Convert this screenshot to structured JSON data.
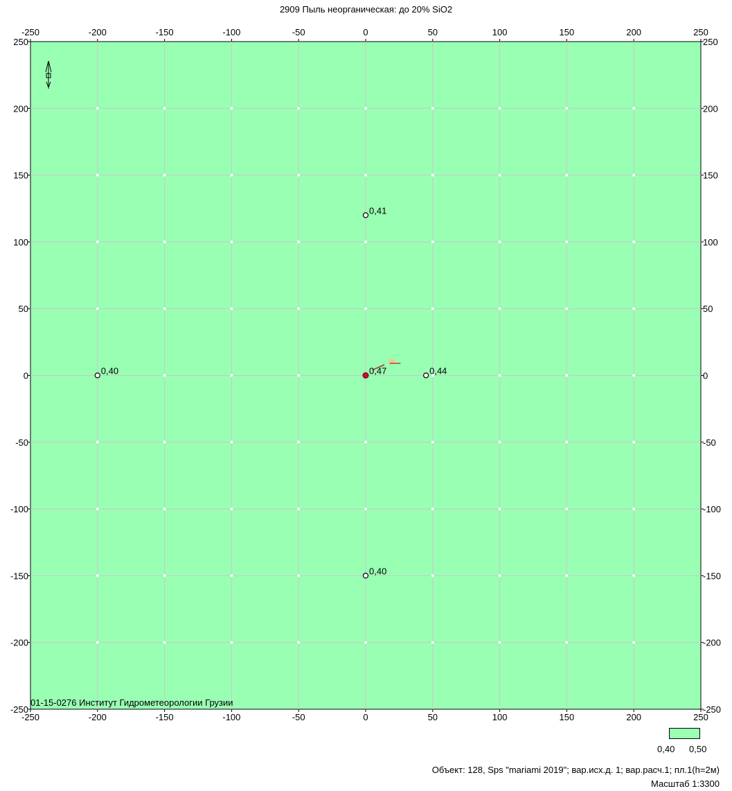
{
  "chart_data": {
    "type": "scatter",
    "title": "2909 Пыль неорганическая: до 20% SiO2",
    "xlim": [
      -250,
      250
    ],
    "ylim": [
      -250,
      250
    ],
    "x_ticks": [
      -250,
      -200,
      -150,
      -100,
      -50,
      0,
      50,
      100,
      150,
      200,
      250
    ],
    "y_ticks": [
      -250,
      -200,
      -150,
      -100,
      -50,
      0,
      50,
      100,
      150,
      200,
      250
    ],
    "grid": true,
    "background_color": "#99ffb3",
    "points": [
      {
        "x": 0,
        "y": 120,
        "label": "0,41",
        "marker": "open-circle"
      },
      {
        "x": -200,
        "y": 0,
        "label": "0,40",
        "marker": "open-circle"
      },
      {
        "x": 0,
        "y": 0,
        "label": "0,47",
        "marker": "filled-red"
      },
      {
        "x": 45,
        "y": 0,
        "label": "0,44",
        "marker": "open-circle"
      },
      {
        "x": 0,
        "y": -150,
        "label": "0,40",
        "marker": "open-circle"
      }
    ],
    "legend": {
      "color": "#99ffb3",
      "min": "0,40",
      "max": "0,50",
      "placement": "bottom-right"
    }
  },
  "corner_label": "01-15-0276 Институт Гидрометеорологии Грузии",
  "info_line": "Объект: 128, Sps \"mariami 2019\"; вар.исх.д. 1; вар.расч.1; пл.1(h=2м)",
  "scale_line": "Масштаб 1:3300",
  "icons": [
    "north-arrow-icon"
  ]
}
